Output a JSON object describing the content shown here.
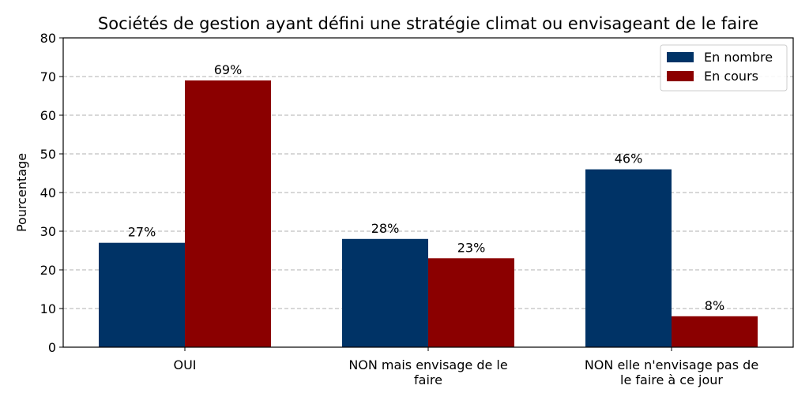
{
  "chart_data": {
    "type": "bar",
    "title": "Sociétés de gestion ayant défini une stratégie climat ou envisageant de le faire",
    "xlabel": "",
    "ylabel": "Pourcentage",
    "ylim": [
      0,
      80
    ],
    "yticks": [
      0,
      10,
      20,
      30,
      40,
      50,
      60,
      70,
      80
    ],
    "grid": "y-dashed",
    "legend_position": "top-right",
    "categories": [
      [
        "OUI"
      ],
      [
        "NON mais envisage de le",
        "faire"
      ],
      [
        "NON elle n'envisage pas de",
        "le faire à ce jour"
      ]
    ],
    "series": [
      {
        "name": "En nombre",
        "color": "#003366",
        "values": [
          27,
          28,
          46
        ],
        "labels": [
          "27%",
          "28%",
          "46%"
        ]
      },
      {
        "name": "En cours",
        "color": "#8b0000",
        "values": [
          69,
          23,
          8
        ],
        "labels": [
          "69%",
          "23%",
          "8%"
        ]
      }
    ]
  }
}
